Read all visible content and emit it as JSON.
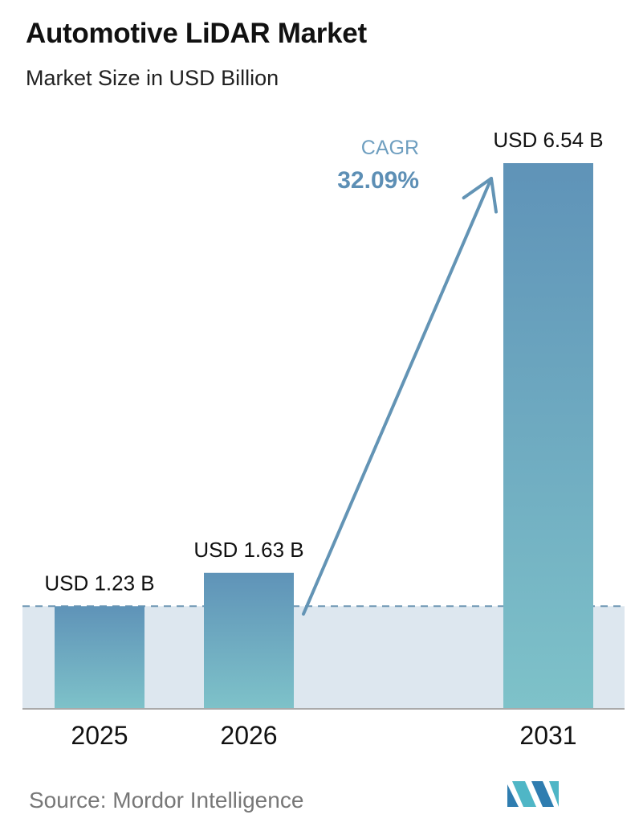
{
  "header": {
    "title": "Automotive LiDAR Market",
    "subtitle": "Market Size in USD Billion"
  },
  "annotation": {
    "cagr_label": "CAGR",
    "cagr_value": "32.09%"
  },
  "footer": {
    "source": "Source:  Mordor Intelligence",
    "logo_icon": "mordor-intelligence-logo-icon"
  },
  "colors": {
    "bar_top": "#5f93b8",
    "bar_bottom": "#7ec2c9",
    "band": "#dde7ef",
    "arrow": "#6394b5",
    "dashed_line": "#6f97b4",
    "baseline": "#aaaaaa",
    "cagr_label": "#6f9fc0",
    "cagr_value": "#5d8fb5"
  },
  "chart_data": {
    "type": "bar",
    "title": "Automotive LiDAR Market",
    "subtitle": "Market Size in USD Billion",
    "categories": [
      "2025",
      "2026",
      "2031"
    ],
    "values": [
      1.23,
      1.63,
      6.54
    ],
    "data_labels": [
      "USD 1.23 B",
      "USD 1.63 B",
      "USD 6.54 B"
    ],
    "ylim": [
      0,
      6.54
    ],
    "grid": false,
    "legend": "none"
  }
}
